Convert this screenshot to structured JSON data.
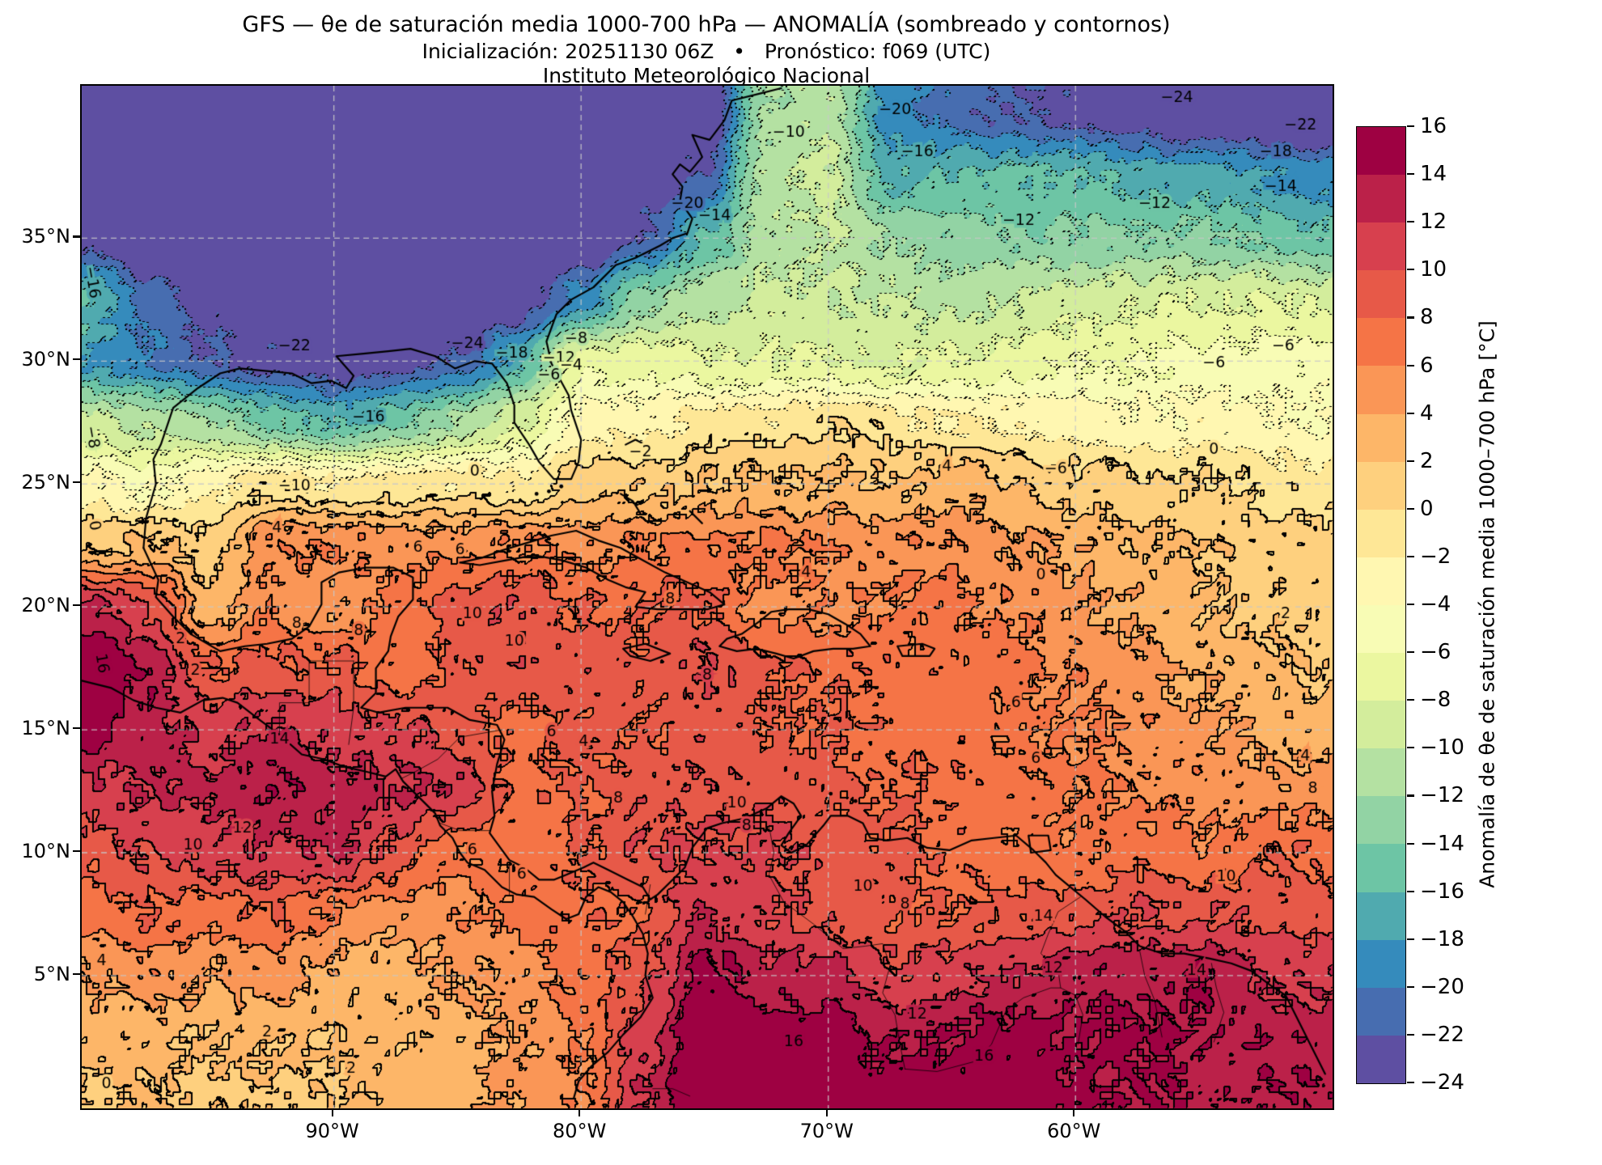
{
  "header": {
    "title": "GFS — θe de saturación media 1000-700 hPa — ANOMALÍA (sombreado y contornos)",
    "subtitle": "Inicialización: 20251130 06Z   •   Pronóstico: f069 (UTC)",
    "institution": "Instituto Meteorológico Nacional"
  },
  "chart_data": {
    "type": "heatmap",
    "subtype": "filled-contour-map",
    "title": "GFS — θe de saturación media 1000-700 hPa — ANOMALÍA (sombreado y contornos)",
    "xlabel": "",
    "ylabel": "",
    "lon_range": [
      -100.2,
      -49.6
    ],
    "lat_range": [
      -0.4,
      41.2
    ],
    "grid_on": true,
    "x_ticks": [
      {
        "label": "90°W",
        "lon": -90
      },
      {
        "label": "80°W",
        "lon": -80
      },
      {
        "label": "70°W",
        "lon": -70
      },
      {
        "label": "60°W",
        "lon": -60
      }
    ],
    "y_ticks": [
      {
        "label": "35°N",
        "lat": 35
      },
      {
        "label": "30°N",
        "lat": 30
      },
      {
        "label": "25°N",
        "lat": 25
      },
      {
        "label": "20°N",
        "lat": 20
      },
      {
        "label": "15°N",
        "lat": 15
      },
      {
        "label": "10°N",
        "lat": 10
      },
      {
        "label": "5°N",
        "lat": 5
      }
    ],
    "contour_interval": 2,
    "level_min": -24,
    "level_max": 16,
    "negative_contours_dotted": true,
    "colorbar": {
      "label": "Anomalía de θe de saturación media 1000–700 hPa [°C]",
      "ticks": [
        "16",
        "14",
        "12",
        "10",
        "8",
        "6",
        "4",
        "2",
        "0",
        "−2",
        "−4",
        "−6",
        "−8",
        "−10",
        "−12",
        "−14",
        "−16",
        "−18",
        "−20",
        "−22",
        "−24"
      ],
      "colors_low_to_high": [
        "#5E4FA2",
        "#476DB0",
        "#358BBC",
        "#50AAAF",
        "#6DC5A5",
        "#92D3A4",
        "#B4E1A2",
        "#D3ED9C",
        "#EBF7A0",
        "#F8FCB5",
        "#FFF7B1",
        "#FEE796",
        "#FED07E",
        "#FDB668",
        "#FA9656",
        "#F57446",
        "#E75948",
        "#D7404E",
        "#BB2149",
        "#9E0142"
      ]
    },
    "grid": {
      "lons": [
        -100,
        -97.5,
        -95,
        -92.5,
        -90,
        -87.5,
        -85,
        -82.5,
        -80,
        -77.5,
        -75,
        -72.5,
        -70,
        -67.5,
        -65,
        -62.5,
        -60,
        -57.5,
        -55,
        -52.5,
        -50
      ],
      "lats": [
        40,
        37.5,
        35,
        32.5,
        30,
        27.5,
        25,
        22.5,
        20,
        17.5,
        15,
        12.5,
        10,
        7.5,
        5,
        2.5,
        0
      ],
      "values": [
        [
          -26,
          -26,
          -26,
          -26,
          -26,
          -26,
          -26,
          -26,
          -26,
          -26,
          -25,
          -12,
          -10.5,
          -19,
          -21,
          -22,
          -23,
          -24,
          -25,
          -25,
          -26
        ],
        [
          -26,
          -26,
          -26,
          -25.5,
          -25.5,
          -25.5,
          -25.5,
          -25.5,
          -25,
          -24,
          -22,
          -10.5,
          -9.5,
          -16.5,
          -16,
          -15.5,
          -16,
          -16.5,
          -17.5,
          -18,
          -19
        ],
        [
          -23,
          -25,
          -25.5,
          -25.5,
          -25.5,
          -25.5,
          -25.5,
          -25,
          -24.5,
          -22,
          -16,
          -11,
          -10,
          -12,
          -13,
          -13.5,
          -13.5,
          -13.5,
          -13.5,
          -14.5,
          -15.5
        ],
        [
          -16,
          -21,
          -23,
          -24.5,
          -25,
          -25,
          -25,
          -24,
          -19,
          -13,
          -10.5,
          -9.5,
          -9.5,
          -10,
          -10.5,
          -10,
          -9,
          -8.5,
          -8,
          -8,
          -8.5
        ],
        [
          -18,
          -20,
          -21.5,
          -23,
          -23.5,
          -23,
          -21.5,
          -17,
          -6.5,
          -7,
          -7.5,
          -8,
          -8,
          -8.5,
          -8,
          -7,
          -6.5,
          -6,
          -5.5,
          -5.2,
          -5.5
        ],
        [
          -9,
          -10.5,
          -12,
          -14.5,
          -16.5,
          -14.5,
          -12,
          -8,
          -3.5,
          -2.5,
          -1.5,
          -1,
          -0.5,
          -1,
          -2,
          -2.5,
          -3,
          -3.5,
          -3,
          -3.5,
          -4
        ],
        [
          -3.5,
          -4.5,
          -3,
          -0.5,
          -2,
          -1,
          -1,
          -1.5,
          1,
          1.5,
          2,
          2.5,
          2.5,
          2,
          3.5,
          2,
          1,
          0.5,
          0.5,
          -0.5,
          -1
        ],
        [
          1.5,
          2,
          1,
          5.5,
          6,
          5,
          5.5,
          6,
          5.5,
          6,
          6.5,
          6.5,
          6,
          5.5,
          5.5,
          4.5,
          3.5,
          2.5,
          2,
          1,
          0.5
        ],
        [
          13,
          10,
          3,
          5.5,
          4.5,
          6.5,
          9,
          9.5,
          8,
          7.5,
          8.5,
          5,
          5.5,
          6,
          6.5,
          5.5,
          4.5,
          3.5,
          2.5,
          1.5,
          1
        ],
        [
          16.5,
          14,
          8,
          9,
          8.5,
          7,
          8.5,
          9.5,
          9.5,
          9,
          10,
          8.5,
          7.5,
          7,
          7,
          6.5,
          5.5,
          4.5,
          3.5,
          2.5,
          2
        ],
        [
          15,
          13,
          11,
          12.5,
          11,
          10.5,
          9,
          7.5,
          8.5,
          8.5,
          9,
          8.5,
          8,
          7.5,
          7,
          6.5,
          6,
          5.5,
          4.5,
          3.5,
          3
        ],
        [
          11,
          12,
          12.5,
          13.5,
          13,
          12,
          11.5,
          7,
          8,
          9,
          9.5,
          9.5,
          8.5,
          8,
          7.5,
          7,
          6.5,
          6,
          5.5,
          5,
          5
        ],
        [
          9,
          10,
          11,
          11.5,
          12.5,
          9,
          6.5,
          6.5,
          8.5,
          9.5,
          10.5,
          10,
          9.5,
          8.5,
          7.5,
          6.5,
          6.5,
          7,
          6.5,
          7.5,
          7.5
        ],
        [
          7,
          8,
          7,
          8,
          6,
          5,
          5.5,
          7,
          7.5,
          8,
          12,
          10.5,
          9,
          8.5,
          8,
          8.5,
          9,
          10,
          9.5,
          9.5,
          9
        ],
        [
          4,
          5,
          4,
          5,
          3,
          3,
          4,
          5,
          6.5,
          9.5,
          14.5,
          13,
          12.5,
          10.5,
          11,
          12.5,
          13,
          13.5,
          14,
          12,
          11.5
        ],
        [
          2.5,
          3,
          2,
          2.5,
          2,
          2.5,
          3,
          4,
          6,
          11,
          16.5,
          15.5,
          15.5,
          13.5,
          14.5,
          15,
          14.5,
          14.5,
          14,
          13.5,
          13
        ],
        [
          1.5,
          2,
          1.5,
          1.5,
          2,
          3,
          3.5,
          4.5,
          6,
          12,
          16.5,
          16.5,
          16.5,
          15,
          15.5,
          15.5,
          14.5,
          14,
          13.5,
          13.5,
          13.5
        ]
      ]
    },
    "contour_labels": [
      {
        "t": "−24",
        "lon": -84.6,
        "lat": 30.7
      },
      {
        "t": "−22",
        "lon": -91.6,
        "lat": 30.6
      },
      {
        "t": "−18",
        "lon": -82.8,
        "lat": 30.3
      },
      {
        "t": "−16",
        "lon": -88.6,
        "lat": 27.7
      },
      {
        "t": "−16",
        "lon": -99.8,
        "lat": 33.2,
        "rot": 80
      },
      {
        "t": "−12",
        "lon": -80.9,
        "lat": 30.1
      },
      {
        "t": "−10",
        "lon": -91.6,
        "lat": 24.9
      },
      {
        "t": "−8",
        "lon": -99.8,
        "lat": 26.9,
        "rot": 80
      },
      {
        "t": "−8",
        "lon": -80.2,
        "lat": 30.9
      },
      {
        "t": "−6",
        "lon": -81.3,
        "lat": 29.4
      },
      {
        "t": "−4",
        "lon": -80.4,
        "lat": 29.8
      },
      {
        "t": "−2",
        "lon": -77.6,
        "lat": 26.3
      },
      {
        "t": "−20",
        "lon": -75.7,
        "lat": 36.4
      },
      {
        "t": "−14",
        "lon": -74.6,
        "lat": 35.9
      },
      {
        "t": "−10",
        "lon": -71.6,
        "lat": 39.3
      },
      {
        "t": "−20",
        "lon": -67.3,
        "lat": 40.2
      },
      {
        "t": "−16",
        "lon": -66.4,
        "lat": 38.5
      },
      {
        "t": "−12",
        "lon": -62.3,
        "lat": 35.7
      },
      {
        "t": "−24",
        "lon": -55.9,
        "lat": 40.7
      },
      {
        "t": "−22",
        "lon": -50.9,
        "lat": 39.6
      },
      {
        "t": "−18",
        "lon": -51.9,
        "lat": 38.5
      },
      {
        "t": "−14",
        "lon": -51.7,
        "lat": 37.1
      },
      {
        "t": "−12",
        "lon": -56.8,
        "lat": 36.4
      },
      {
        "t": "−6",
        "lon": -54.4,
        "lat": 29.9
      },
      {
        "t": "−6",
        "lon": -51.6,
        "lat": 30.6
      },
      {
        "t": "−6",
        "lon": -60.8,
        "lat": 25.6
      },
      {
        "t": "0",
        "lon": -84.3,
        "lat": 25.5
      },
      {
        "t": "0",
        "lon": -54.4,
        "lat": 26.4
      },
      {
        "t": "0",
        "lon": -61.4,
        "lat": 21.3
      },
      {
        "t": "0",
        "lon": -99.7,
        "lat": 23.3,
        "rot": 80
      },
      {
        "t": "0",
        "lon": -99.2,
        "lat": 0.6
      },
      {
        "t": "2",
        "lon": -96.2,
        "lat": 18.7
      },
      {
        "t": "2",
        "lon": -95.6,
        "lat": 17.4
      },
      {
        "t": "2",
        "lon": -51.5,
        "lat": 19.7
      },
      {
        "t": "2",
        "lon": -92.7,
        "lat": 2.7
      },
      {
        "t": "2",
        "lon": -89.3,
        "lat": 1.2
      },
      {
        "t": "4",
        "lon": -92.3,
        "lat": 23.2
      },
      {
        "t": "4",
        "lon": -65.2,
        "lat": 25.7
      },
      {
        "t": "4",
        "lon": -70.9,
        "lat": 21.4
      },
      {
        "t": "4",
        "lon": -99.4,
        "lat": 5.6
      },
      {
        "t": "4",
        "lon": -79.9,
        "lat": 14.5
      },
      {
        "t": "4",
        "lon": -50.7,
        "lat": 13.9
      },
      {
        "t": "6",
        "lon": -86.6,
        "lat": 22.4
      },
      {
        "t": "6",
        "lon": -84.9,
        "lat": 22.3
      },
      {
        "t": "6",
        "lon": -81.2,
        "lat": 14.9
      },
      {
        "t": "6",
        "lon": -62.4,
        "lat": 16.1
      },
      {
        "t": "6",
        "lon": -61.6,
        "lat": 13.8
      },
      {
        "t": "6",
        "lon": -84.4,
        "lat": 10.1
      },
      {
        "t": "6",
        "lon": -82.4,
        "lat": 9.1
      },
      {
        "t": "8",
        "lon": -91.5,
        "lat": 19.3
      },
      {
        "t": "8",
        "lon": -89.0,
        "lat": 19.0
      },
      {
        "t": "8",
        "lon": -76.4,
        "lat": 20.3
      },
      {
        "t": "8",
        "lon": -74.9,
        "lat": 17.2
      },
      {
        "t": "8",
        "lon": -78.5,
        "lat": 12.2
      },
      {
        "t": "8",
        "lon": -73.3,
        "lat": 11.1
      },
      {
        "t": "8",
        "lon": -66.9,
        "lat": 7.9
      },
      {
        "t": "8",
        "lon": -50.4,
        "lat": 12.6
      },
      {
        "t": "10",
        "lon": -84.4,
        "lat": 19.7
      },
      {
        "t": "10",
        "lon": -82.7,
        "lat": 18.6
      },
      {
        "t": "10",
        "lon": -73.7,
        "lat": 12.0
      },
      {
        "t": "10",
        "lon": -95.7,
        "lat": 10.3
      },
      {
        "t": "10",
        "lon": -68.6,
        "lat": 8.6
      },
      {
        "t": "10",
        "lon": -53.9,
        "lat": 9.0
      },
      {
        "t": "12",
        "lon": -93.7,
        "lat": 11.0
      },
      {
        "t": "12",
        "lon": -60.9,
        "lat": 5.3
      },
      {
        "t": "12",
        "lon": -66.4,
        "lat": 3.4
      },
      {
        "t": "14",
        "lon": -92.2,
        "lat": 14.6
      },
      {
        "t": "14",
        "lon": -61.3,
        "lat": 7.4
      },
      {
        "t": "14",
        "lon": -55.1,
        "lat": 5.2
      },
      {
        "t": "16",
        "lon": -99.4,
        "lat": 17.7,
        "rot": 80
      },
      {
        "t": "16",
        "lon": -71.4,
        "lat": 2.3
      },
      {
        "t": "16",
        "lon": -63.7,
        "lat": 1.7
      }
    ]
  }
}
